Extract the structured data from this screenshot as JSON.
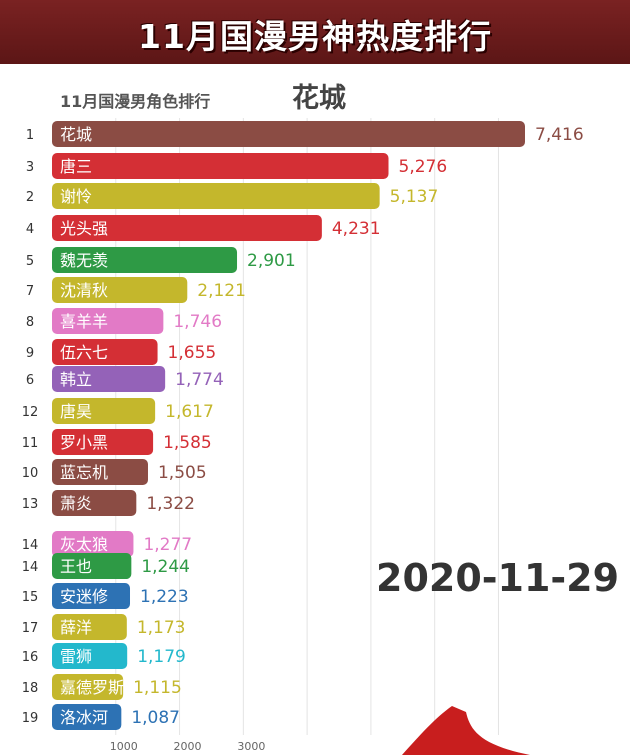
{
  "header": {
    "title": "11月国漫男神热度排行"
  },
  "chart_subtitle": "11月国漫男角色排行",
  "leader_name": "花城",
  "date_label": "2020-11-29",
  "chart_data": {
    "type": "bar",
    "orientation": "horizontal",
    "title": "11月国漫男角色排行",
    "xlim": [
      0,
      7416
    ],
    "x_ticks": [
      "1000",
      "2000",
      "3000"
    ],
    "grid": true,
    "bars": [
      {
        "rank": "1",
        "label": "花城",
        "value": 7416,
        "value_label": "7,416",
        "color": "#8b4c44"
      },
      {
        "rank": "3",
        "label": "唐三",
        "value": 5276,
        "value_label": "5,276",
        "color": "#d42f35"
      },
      {
        "rank": "2",
        "label": "谢怜",
        "value": 5137,
        "value_label": "5,137",
        "color": "#c4b72c"
      },
      {
        "rank": "4",
        "label": "光头强",
        "value": 4231,
        "value_label": "4,231",
        "color": "#d42f35"
      },
      {
        "rank": "5",
        "label": "魏无羡",
        "value": 2901,
        "value_label": "2,901",
        "color": "#2e9a45"
      },
      {
        "rank": "7",
        "label": "沈清秋",
        "value": 2121,
        "value_label": "2,121",
        "color": "#c4b72c"
      },
      {
        "rank": "8",
        "label": "喜羊羊",
        "value": 1746,
        "value_label": "1,746",
        "color": "#e27ac6"
      },
      {
        "rank": "9",
        "label": "伍六七",
        "value": 1655,
        "value_label": "1,655",
        "color": "#d42f35"
      },
      {
        "rank": "6",
        "label": "韩立",
        "value": 1774,
        "value_label": "1,774",
        "color": "#9462b8"
      },
      {
        "rank": "12",
        "label": "唐昊",
        "value": 1617,
        "value_label": "1,617",
        "color": "#c4b72c"
      },
      {
        "rank": "11",
        "label": "罗小黑",
        "value": 1585,
        "value_label": "1,585",
        "color": "#d42f35"
      },
      {
        "rank": "10",
        "label": "蓝忘机",
        "value": 1505,
        "value_label": "1,505",
        "color": "#8b4c44"
      },
      {
        "rank": "13",
        "label": "萧炎",
        "value": 1322,
        "value_label": "1,322",
        "color": "#8b4c44"
      },
      {
        "rank": "14",
        "label": "灰太狼",
        "value": 1277,
        "value_label": "1,277",
        "color": "#e27ac6"
      },
      {
        "rank": "14",
        "label": "王也",
        "value": 1244,
        "value_label": "1,244",
        "color": "#2e9a45"
      },
      {
        "rank": "15",
        "label": "安迷修",
        "value": 1223,
        "value_label": "1,223",
        "color": "#2d72b4"
      },
      {
        "rank": "17",
        "label": "薛洋",
        "value": 1173,
        "value_label": "1,173",
        "color": "#c4b72c"
      },
      {
        "rank": "16",
        "label": "雷狮",
        "value": 1179,
        "value_label": "1,179",
        "color": "#23b8cc"
      },
      {
        "rank": "18",
        "label": "嘉德罗斯",
        "value": 1115,
        "value_label": "1,115",
        "color": "#c4b72c"
      },
      {
        "rank": "19",
        "label": "洛冰河",
        "value": 1087,
        "value_label": "1,087",
        "color": "#2d72b4"
      }
    ]
  }
}
